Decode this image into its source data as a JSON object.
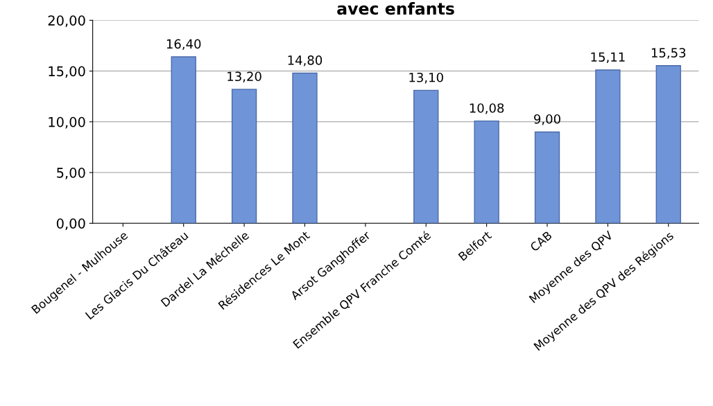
{
  "chart_data": {
    "type": "bar",
    "title": "avec enfants",
    "categories": [
      "Bougenel - Mulhouse",
      "Les Glacis Du Château",
      "Dardel La Méchelle",
      "Résidences Le Mont",
      "Arsot Ganghoffer",
      "Ensemble QPV Franche Comté",
      "Belfort",
      "CAB",
      "Moyenne des QPV",
      "Moyenne des QPV des Régions"
    ],
    "values": [
      null,
      16.4,
      13.2,
      14.8,
      null,
      13.1,
      10.08,
      9.0,
      15.11,
      15.53
    ],
    "value_labels": [
      null,
      "16,40",
      "13,20",
      "14,80",
      null,
      "13,10",
      "10,08",
      "9,00",
      "15,11",
      "15,53"
    ],
    "color": "#7094d8",
    "ylim": [
      0,
      20
    ],
    "yticks": [
      {
        "value": 0,
        "label": "0,00"
      },
      {
        "value": 5,
        "label": "5,00"
      },
      {
        "value": 10,
        "label": "10,00"
      },
      {
        "value": 15,
        "label": "15,00"
      },
      {
        "value": 20,
        "label": "20,00"
      }
    ],
    "grid": "y"
  }
}
